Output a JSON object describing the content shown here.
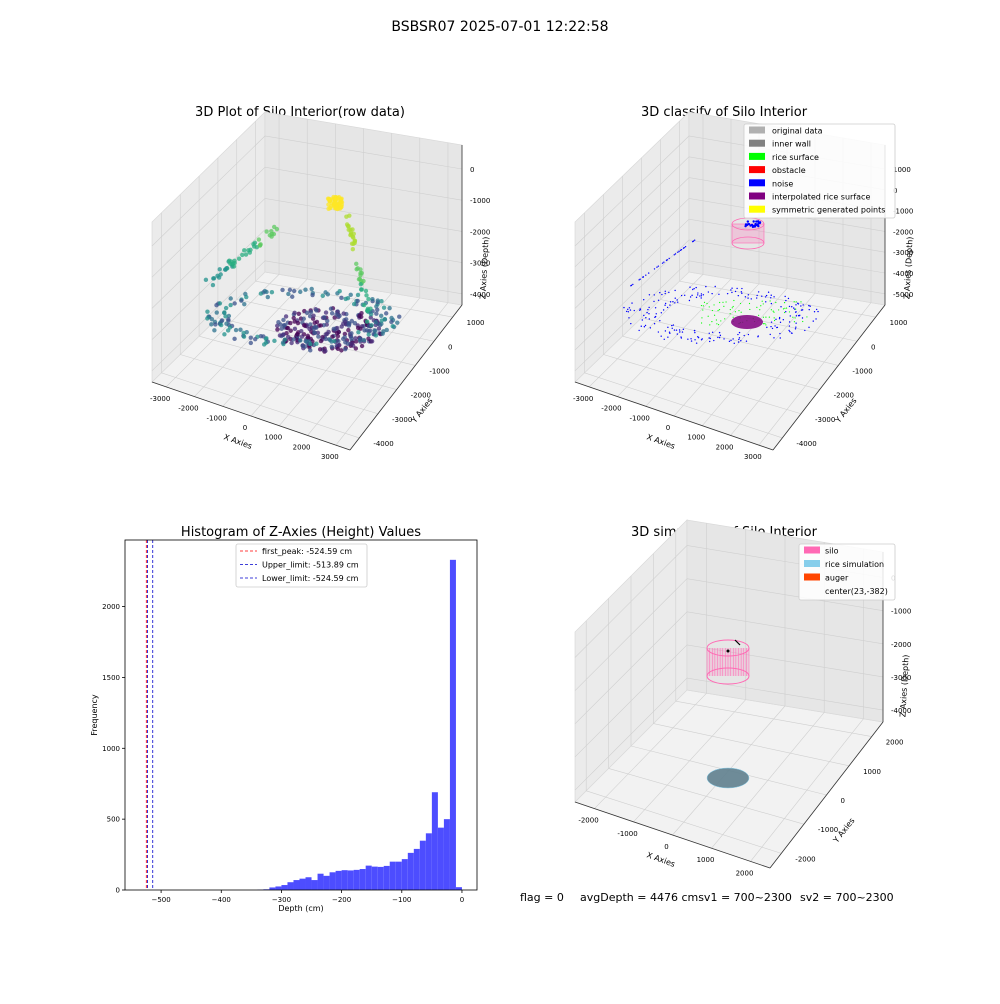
{
  "suptitle": "BSBSR07 2025-07-01 12:22:58",
  "status": {
    "flag": "flag = 0",
    "avg": "avgDepth = 4476 cmsv1 = 700~2300",
    "sv2": "sv2 = 700~2300"
  },
  "colors": {
    "hist_bar": "#4d4dff",
    "first_peak": "#ff0000",
    "limit": "#0000cc",
    "silo": "#ff69b4",
    "rice_sim": "#87ceeb",
    "auger": "#ff4500",
    "original": "#b0b0b0",
    "inner_wall": "#808080",
    "rice_surface": "#00ff00",
    "obstacle": "#ff0000",
    "noise": "#0000ff",
    "interp": "#800080",
    "symmetric": "#ffff00"
  },
  "chart_data": [
    {
      "type": "scatter",
      "title": "3D Plot of Silo Interior(row data)",
      "xlabel": "X Axies",
      "ylabel": "Y Axies",
      "zlabel": "Z Axies (Depth)",
      "xticks": [
        "-3000",
        "-2000",
        "-1000",
        "0",
        "1000",
        "2000",
        "3000"
      ],
      "yticks": [
        "1000",
        "0",
        "-1000",
        "-2000",
        "-3000",
        "-4000"
      ],
      "zticks": [
        "0",
        "-1000",
        "-2000",
        "-3000",
        "-4000"
      ]
    },
    {
      "type": "scatter",
      "title": "3D classify of Silo Interior",
      "xlabel": "X Axies",
      "ylabel": "Y Axies",
      "zlabel": "Z Axies (Depth)",
      "xticks": [
        "-3000",
        "-2000",
        "-1000",
        "0",
        "1000",
        "2000",
        "3000"
      ],
      "yticks": [
        "1000",
        "0",
        "-1000",
        "-2000",
        "-3000",
        "-4000"
      ],
      "zticks": [
        "1000",
        "0",
        "-1000",
        "-2000",
        "-3000",
        "-4000",
        "-5000"
      ],
      "legend": [
        "original data",
        "inner wall",
        "rice surface",
        "obstacle",
        "noise",
        "interpolated rice surface",
        "symmetric generated points"
      ],
      "legend_loc": "top-right"
    },
    {
      "type": "bar",
      "title": "Histogram of Z-Axies (Height) Values",
      "xlabel": "Depth (cm)",
      "ylabel": "Frequency",
      "xlim": [
        -560,
        25
      ],
      "ylim": [
        0,
        2470
      ],
      "xticks": [
        -500,
        -400,
        -300,
        -200,
        -100,
        0
      ],
      "yticks": [
        0,
        500,
        1000,
        1500,
        2000
      ],
      "bin_width": 10,
      "bins": [
        [
          -340,
          2
        ],
        [
          -330,
          5
        ],
        [
          -320,
          18
        ],
        [
          -310,
          25
        ],
        [
          -300,
          35
        ],
        [
          -290,
          55
        ],
        [
          -280,
          70
        ],
        [
          -270,
          80
        ],
        [
          -260,
          90
        ],
        [
          -250,
          70
        ],
        [
          -240,
          115
        ],
        [
          -230,
          100
        ],
        [
          -220,
          125
        ],
        [
          -210,
          135
        ],
        [
          -200,
          140
        ],
        [
          -190,
          138
        ],
        [
          -180,
          142
        ],
        [
          -170,
          148
        ],
        [
          -160,
          172
        ],
        [
          -150,
          165
        ],
        [
          -140,
          163
        ],
        [
          -130,
          170
        ],
        [
          -120,
          200
        ],
        [
          -110,
          200
        ],
        [
          -100,
          218
        ],
        [
          -90,
          262
        ],
        [
          -80,
          290
        ],
        [
          -70,
          348
        ],
        [
          -60,
          400
        ],
        [
          -50,
          690
        ],
        [
          -40,
          440
        ],
        [
          -30,
          500
        ],
        [
          -20,
          2330
        ],
        [
          -10,
          20
        ]
      ],
      "lines": [
        {
          "label": "first_peak: -524.59 cm",
          "value": -524.59,
          "style": "first_peak"
        },
        {
          "label": "Upper_limit: -513.89 cm",
          "value": -513.89,
          "style": "limit"
        },
        {
          "label": "Lower_limit: -524.59 cm",
          "value": -524.59,
          "style": "limit"
        }
      ],
      "legend_loc": "top-center"
    },
    {
      "type": "scatter",
      "title": "3D simulation of Silo Interior",
      "xlabel": "X Axies",
      "ylabel": "Y Axies",
      "zlabel": "Z Axies (Depth)",
      "xticks": [
        "-2000",
        "-1000",
        "0",
        "1000",
        "2000"
      ],
      "yticks": [
        "2000",
        "1000",
        "0",
        "-1000",
        "-2000"
      ],
      "zticks": [
        "0",
        "-1000",
        "-2000",
        "-3000",
        "-4000"
      ],
      "legend": [
        "silo",
        "rice simulation",
        "auger",
        "center(23,-382)"
      ],
      "legend_loc": "top-right"
    }
  ]
}
